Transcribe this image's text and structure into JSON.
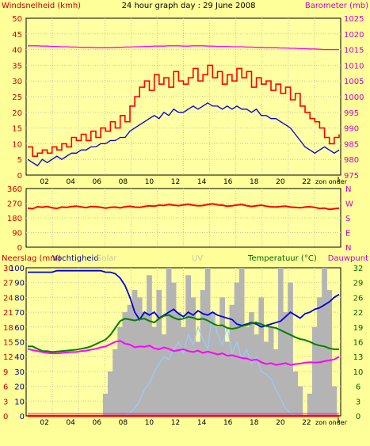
{
  "header": {
    "title": "24 hour graph day : 29 June 2008",
    "left_label": "Windsnelheid (kmh)",
    "right_label": "Barometer (mb)"
  },
  "colors": {
    "background": "#ffff99",
    "plot_bg": "#ffffa3",
    "frame": "#000000",
    "grid": "#c8c8a0",
    "red": "#ff0000",
    "dark_red": "#cc0000",
    "magenta": "#ff00ff",
    "blue": "#0000dd",
    "green": "#008000",
    "gray_bars": "#b4b4b4",
    "light_blue": "#99ccff",
    "left_axis_text": "#cc0000",
    "right_axis_text": "#cc00cc",
    "green_axis_text": "#006600",
    "gray_text": "#c8c8a0"
  },
  "chart_data": [
    {
      "id": "wind",
      "type": "line",
      "y_left": {
        "ticks": [
          "50",
          "45",
          "40",
          "35",
          "30",
          "25",
          "20",
          "15",
          "10",
          "5",
          "0"
        ]
      },
      "y_right": {
        "ticks": [
          "1025",
          "1020",
          "1015",
          "1010",
          "1005",
          "1000",
          "995",
          "990",
          "985",
          "980",
          "975"
        ]
      },
      "x_ticks": [
        "02",
        "04",
        "06",
        "08",
        "10",
        "12",
        "14",
        "16",
        "18",
        "20",
        "22",
        "zon onder"
      ],
      "series": [
        {
          "key": "gust",
          "color": "#ff0000",
          "stepped": true,
          "values": [
            9,
            6,
            7,
            8,
            7,
            9,
            8,
            10,
            9,
            12,
            11,
            13,
            11,
            14,
            12,
            15,
            14,
            17,
            15,
            19,
            17,
            22,
            25,
            28,
            30,
            27,
            32,
            29,
            31,
            28,
            33,
            30,
            29,
            31,
            34,
            30,
            32,
            35,
            31,
            33,
            29,
            32,
            30,
            34,
            31,
            33,
            28,
            31,
            29,
            30,
            27,
            29,
            26,
            28,
            24,
            26,
            22,
            20,
            18,
            17,
            15,
            12,
            10,
            12,
            13
          ]
        },
        {
          "key": "avg_wind",
          "color": "#0000dd",
          "values": [
            5,
            4,
            3,
            5,
            4,
            5,
            6,
            5,
            6,
            7,
            7,
            8,
            8,
            9,
            9,
            10,
            10,
            11,
            11,
            12,
            12,
            14,
            15,
            16,
            17,
            18,
            19,
            18,
            20,
            19,
            21,
            20,
            20,
            21,
            22,
            21,
            22,
            23,
            22,
            22,
            21,
            22,
            21,
            22,
            21,
            21,
            20,
            21,
            19,
            19,
            18,
            18,
            17,
            16,
            15,
            13,
            11,
            9,
            8,
            7,
            8,
            9,
            8,
            7,
            8
          ]
        },
        {
          "key": "barometer",
          "axis": "right",
          "color": "#ff00ff",
          "values": [
            1016.2,
            1016.2,
            1016.2,
            1016.1,
            1016.1,
            1016.0,
            1016.0,
            1015.9,
            1015.9,
            1015.8,
            1015.8,
            1015.7,
            1015.7,
            1015.7,
            1015.6,
            1015.6,
            1015.6,
            1015.6,
            1015.7,
            1015.7,
            1015.8,
            1015.8,
            1015.9,
            1015.9,
            1016.0,
            1016.0,
            1016.1,
            1016.1,
            1016.1,
            1016.2,
            1016.2,
            1016.2,
            1016.1,
            1016.1,
            1016.2,
            1016.2,
            1016.2,
            1016.1,
            1016.1,
            1016.0,
            1016.0,
            1016.0,
            1015.9,
            1015.9,
            1015.9,
            1015.8,
            1015.8,
            1015.7,
            1015.7,
            1015.6,
            1015.6,
            1015.6,
            1015.5,
            1015.5,
            1015.4,
            1015.4,
            1015.3,
            1015.3,
            1015.2,
            1015.2,
            1015.1,
            1015.0,
            1015.0,
            1015.0,
            1015.0
          ]
        }
      ]
    },
    {
      "id": "direction",
      "type": "line",
      "y_left": {
        "ticks": [
          "360",
          "270",
          "180",
          "90",
          "0"
        ]
      },
      "y_right": {
        "ticks": [
          "N",
          "W",
          "S",
          "E",
          "N"
        ]
      },
      "x_ticks": [],
      "series": [
        {
          "key": "wind_dir",
          "color": "#ff0000",
          "values": [
            240,
            236,
            248,
            245,
            250,
            242,
            238,
            246,
            244,
            249,
            252,
            247,
            243,
            250,
            248,
            245,
            240,
            244,
            246,
            242,
            248,
            251,
            246,
            244,
            250,
            254,
            252,
            258,
            256,
            262,
            258,
            255,
            260,
            263,
            258,
            254,
            256,
            262,
            266,
            260,
            258,
            252,
            254,
            259,
            262,
            255,
            250,
            254,
            258,
            252,
            248,
            246,
            250,
            252,
            246,
            244,
            242,
            246,
            248,
            244,
            238,
            240,
            232,
            236,
            240
          ]
        }
      ]
    },
    {
      "id": "weather",
      "type": "line",
      "header": {
        "neerslag": "Neerslag (mm)",
        "vochtigheid": "Vochtigheid",
        "solar": "Solar",
        "uv": "UV",
        "temperatuur": "Temperatuur (°C)",
        "dauwpunt": "Dauwpunt"
      },
      "y_rain": {
        "ticks": [
          "30",
          "27",
          "24",
          "21",
          "18",
          "15",
          "12",
          "9",
          "6",
          "3",
          "0"
        ]
      },
      "y_humidity": {
        "ticks": [
          "100",
          "90",
          "80",
          "70",
          "60",
          "50",
          "40",
          "30",
          "20",
          "10",
          "0"
        ]
      },
      "y_temp": {
        "ticks": [
          "32",
          "29",
          "26",
          "22",
          "19",
          "16",
          "13",
          "10",
          "6",
          "3",
          "0"
        ]
      },
      "x_ticks": [
        "02",
        "04",
        "06",
        "08",
        "10",
        "12",
        "14",
        "16",
        "18",
        "20",
        "22",
        "zon onder"
      ],
      "series": [
        {
          "key": "solar",
          "color": "#b4b4b4",
          "values": [
            0,
            0,
            0,
            0,
            0,
            0,
            0,
            0,
            0,
            0,
            0,
            0,
            0,
            0,
            0,
            0,
            15,
            30,
            45,
            60,
            70,
            75,
            85,
            80,
            70,
            95,
            60,
            85,
            55,
            100,
            90,
            70,
            60,
            95,
            80,
            50,
            85,
            100,
            70,
            60,
            80,
            50,
            75,
            90,
            100,
            60,
            70,
            55,
            80,
            50,
            60,
            45,
            100,
            70,
            90,
            30,
            20,
            0,
            15,
            60,
            80,
            100,
            85,
            20,
            0
          ]
        },
        {
          "key": "uv",
          "color": "#99ccff",
          "values": [
            0,
            0,
            0,
            0,
            0,
            0,
            0,
            0,
            0,
            0,
            0,
            0,
            0,
            0,
            0,
            0,
            0,
            0,
            0,
            0,
            0,
            2,
            5,
            10,
            18,
            22,
            30,
            35,
            40,
            38,
            45,
            50,
            42,
            55,
            48,
            60,
            52,
            45,
            70,
            55,
            48,
            60,
            42,
            50,
            38,
            45,
            35,
            40,
            30,
            28,
            25,
            18,
            12,
            5,
            2,
            0,
            0,
            0,
            0,
            0,
            0,
            0,
            0,
            0,
            0
          ]
        },
        {
          "key": "humidity",
          "color": "#0000dd",
          "values": [
            97,
            97,
            97,
            97,
            97,
            97,
            98,
            98,
            98,
            98,
            98,
            98,
            98,
            98,
            98,
            98,
            97,
            97,
            96,
            93,
            88,
            80,
            70,
            65,
            70,
            68,
            70,
            66,
            68,
            70,
            72,
            69,
            67,
            70,
            68,
            71,
            69,
            68,
            70,
            68,
            67,
            66,
            65,
            62,
            61,
            62,
            63,
            62,
            60,
            61,
            62,
            63,
            64,
            67,
            70,
            68,
            66,
            69,
            70,
            72,
            73,
            75,
            77,
            80,
            82
          ]
        },
        {
          "key": "temperature",
          "axis": "temp",
          "color": "#008000",
          "values": [
            15,
            15,
            14.5,
            14,
            14,
            13.8,
            13.9,
            14,
            14.1,
            14.2,
            14.3,
            14.5,
            14.7,
            15,
            15.5,
            16,
            16.5,
            17.5,
            19,
            20.5,
            21,
            20.8,
            20.6,
            20.9,
            21,
            20.5,
            20.2,
            21,
            21.6,
            21.8,
            21.2,
            20.8,
            21,
            21.4,
            21.2,
            20.8,
            21,
            20.6,
            20,
            19.5,
            19.6,
            19,
            18.8,
            19,
            19.4,
            19.6,
            20,
            20.2,
            19.8,
            19.4,
            19.2,
            19,
            18.5,
            18,
            17.5,
            17,
            16.6,
            16.4,
            16,
            15.5,
            15.2,
            15,
            14.6,
            14.4,
            14.4
          ]
        },
        {
          "key": "dewpoint",
          "axis": "temp",
          "color": "#ff00ff",
          "values": [
            14.5,
            14.2,
            14,
            13.8,
            13.6,
            13.5,
            13.5,
            13.6,
            13.7,
            13.8,
            13.8,
            14,
            14.1,
            14.3,
            14.5,
            14.8,
            15,
            15.5,
            16,
            16.2,
            15.6,
            15.4,
            14.8,
            15,
            14.9,
            15.2,
            14.6,
            14.4,
            14.8,
            14.5,
            14,
            14.2,
            14.4,
            14,
            13.8,
            14.1,
            13.6,
            13.9,
            13.6,
            13.3,
            13.5,
            13.0,
            13.1,
            12.8,
            12.5,
            12.4,
            12.0,
            12.2,
            11.6,
            11.2,
            11.4,
            11.0,
            11.2,
            11.4,
            11.0,
            11.2,
            11.3,
            11.5,
            11.6,
            11.5,
            11.6,
            11.8,
            12,
            12.2,
            12.8
          ]
        },
        {
          "key": "rain",
          "color": "#ff0000",
          "values": [
            0,
            0,
            0,
            0,
            0,
            0,
            0,
            0,
            0,
            0,
            0,
            0,
            0,
            0,
            0,
            0,
            0,
            0,
            0,
            0,
            0,
            0,
            0,
            0,
            0,
            0,
            0,
            0,
            0,
            0,
            0,
            0,
            0,
            0,
            0,
            0,
            0,
            0,
            0,
            0,
            0,
            0,
            0,
            0,
            0,
            0,
            0,
            0,
            0,
            0,
            0,
            0,
            0,
            0,
            0,
            0,
            0,
            0,
            0,
            0,
            0,
            0,
            0,
            0,
            0
          ]
        }
      ]
    }
  ]
}
